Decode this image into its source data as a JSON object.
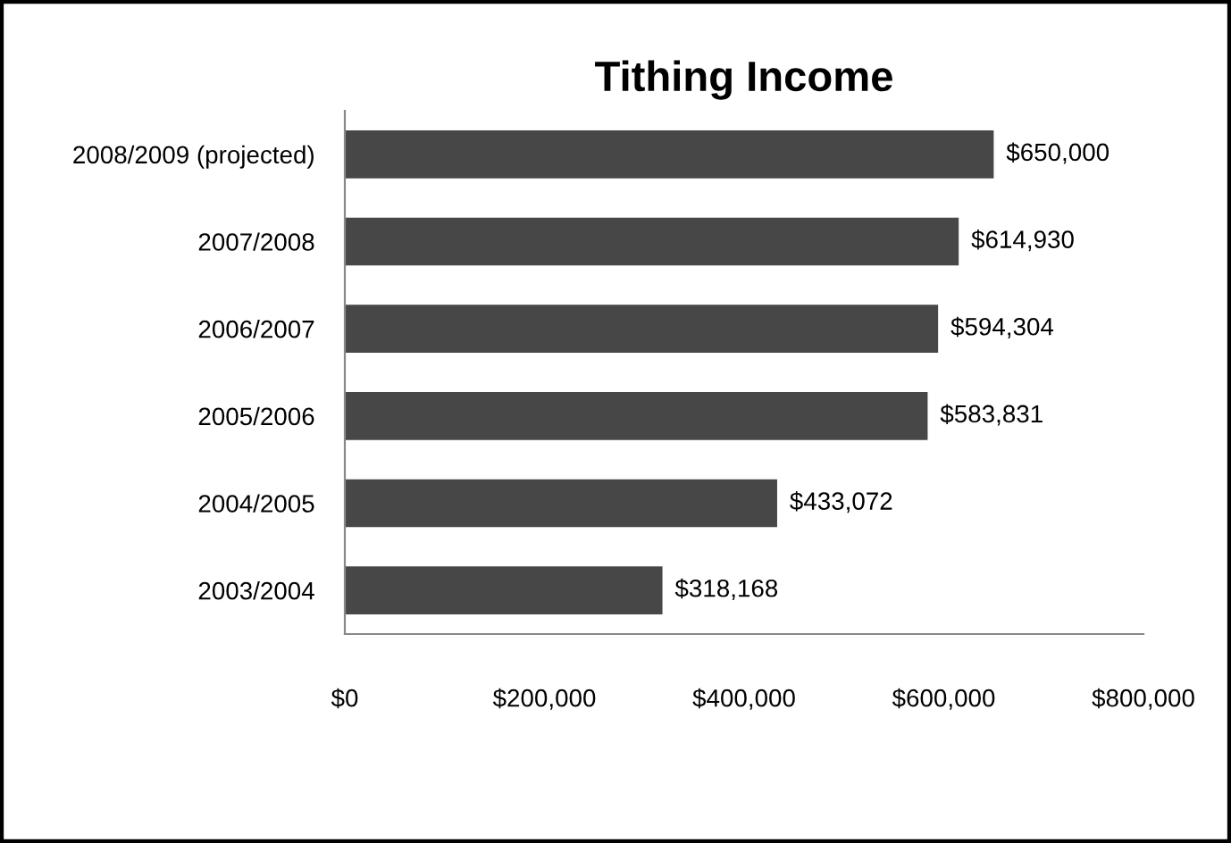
{
  "chart_data": {
    "type": "bar",
    "orientation": "horizontal",
    "title": "Tithing Income",
    "categories": [
      "2008/2009 (projected)",
      "2007/2008",
      "2006/2007",
      "2005/2006",
      "2004/2005",
      "2003/2004"
    ],
    "values": [
      650000,
      614930,
      594304,
      583831,
      433072,
      318168
    ],
    "value_labels": [
      "$650,000",
      "$614,930",
      "$594,304",
      "$583,831",
      "$433,072",
      "$318,168"
    ],
    "color": "#474747",
    "xlim": [
      0,
      800000
    ],
    "xticks": [
      {
        "value": 0,
        "label": "$0"
      },
      {
        "value": 200000,
        "label": "$200,000"
      },
      {
        "value": 400000,
        "label": "$400,000"
      },
      {
        "value": 600000,
        "label": "$600,000"
      },
      {
        "value": 800000,
        "label": "$800,000"
      }
    ],
    "grid": false,
    "legend": false
  }
}
